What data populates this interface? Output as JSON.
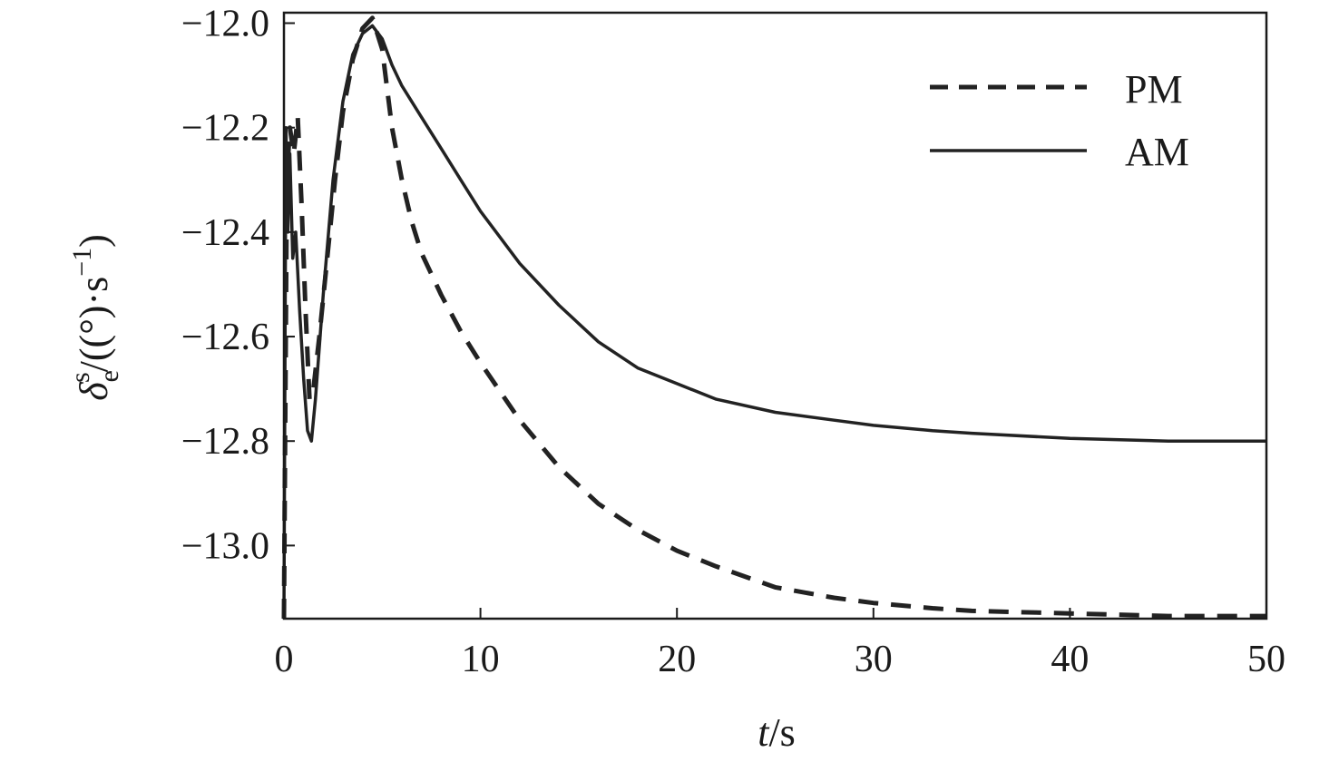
{
  "chart_data": {
    "type": "line",
    "xlabel_italic": "t",
    "xlabel_rest": "/s",
    "ylabel": {
      "symbol": "δ",
      "subscript": "e",
      "superscript": "s",
      "unit_open": "/((°)·s",
      "unit_exp": "−1",
      "unit_close": ")"
    },
    "xlim": [
      0,
      50
    ],
    "ylim": [
      -13.14,
      -11.98
    ],
    "x_ticks": [
      0,
      10,
      20,
      30,
      40,
      50
    ],
    "x_tick_labels": [
      "0",
      "10",
      "20",
      "30",
      "40",
      "50"
    ],
    "y_ticks": [
      -12.0,
      -12.2,
      -12.4,
      -12.6,
      -12.8,
      -13.0
    ],
    "y_tick_labels": [
      "−12.0",
      "−12.2",
      "−12.4",
      "−12.6",
      "−12.8",
      "−13.0"
    ],
    "grid": false,
    "legend_position": "top-right",
    "series": [
      {
        "name": "PM",
        "style": "dashed",
        "color": "#222222",
        "points": [
          [
            0,
            -13.14
          ],
          [
            0.15,
            -12.3
          ],
          [
            0.3,
            -12.2
          ],
          [
            0.5,
            -12.25
          ],
          [
            0.7,
            -12.18
          ],
          [
            0.9,
            -12.35
          ],
          [
            1.1,
            -12.55
          ],
          [
            1.3,
            -12.72
          ],
          [
            1.5,
            -12.7
          ],
          [
            1.8,
            -12.6
          ],
          [
            2.2,
            -12.45
          ],
          [
            2.6,
            -12.3
          ],
          [
            3.0,
            -12.17
          ],
          [
            3.5,
            -12.07
          ],
          [
            4.0,
            -12.01
          ],
          [
            4.5,
            -11.99
          ],
          [
            5.0,
            -12.05
          ],
          [
            5.5,
            -12.2
          ],
          [
            6.0,
            -12.3
          ],
          [
            6.5,
            -12.38
          ],
          [
            7.0,
            -12.44
          ],
          [
            8,
            -12.52
          ],
          [
            9,
            -12.59
          ],
          [
            10,
            -12.65
          ],
          [
            12,
            -12.76
          ],
          [
            14,
            -12.85
          ],
          [
            16,
            -12.92
          ],
          [
            18,
            -12.97
          ],
          [
            20,
            -13.01
          ],
          [
            22,
            -13.04
          ],
          [
            25,
            -13.08
          ],
          [
            28,
            -13.1
          ],
          [
            30,
            -13.11
          ],
          [
            33,
            -13.12
          ],
          [
            35,
            -13.125
          ],
          [
            40,
            -13.13
          ],
          [
            45,
            -13.135
          ],
          [
            50,
            -13.135
          ]
        ]
      },
      {
        "name": "AM",
        "style": "solid",
        "color": "#222222",
        "points": [
          [
            0,
            -13.14
          ],
          [
            0.1,
            -12.2
          ],
          [
            0.2,
            -12.4
          ],
          [
            0.3,
            -12.25
          ],
          [
            0.45,
            -12.45
          ],
          [
            0.6,
            -12.4
          ],
          [
            0.8,
            -12.55
          ],
          [
            1.0,
            -12.68
          ],
          [
            1.2,
            -12.78
          ],
          [
            1.4,
            -12.8
          ],
          [
            1.6,
            -12.72
          ],
          [
            2.0,
            -12.52
          ],
          [
            2.5,
            -12.3
          ],
          [
            3.0,
            -12.15
          ],
          [
            3.5,
            -12.06
          ],
          [
            4.0,
            -12.02
          ],
          [
            4.5,
            -12.005
          ],
          [
            5.0,
            -12.03
          ],
          [
            5.5,
            -12.08
          ],
          [
            6.0,
            -12.12
          ],
          [
            7,
            -12.18
          ],
          [
            8,
            -12.24
          ],
          [
            9,
            -12.3
          ],
          [
            10,
            -12.36
          ],
          [
            12,
            -12.46
          ],
          [
            14,
            -12.54
          ],
          [
            16,
            -12.61
          ],
          [
            18,
            -12.66
          ],
          [
            20,
            -12.69
          ],
          [
            22,
            -12.72
          ],
          [
            25,
            -12.745
          ],
          [
            28,
            -12.76
          ],
          [
            30,
            -12.77
          ],
          [
            33,
            -12.78
          ],
          [
            35,
            -12.785
          ],
          [
            40,
            -12.795
          ],
          [
            45,
            -12.8
          ],
          [
            50,
            -12.8
          ]
        ]
      }
    ]
  }
}
